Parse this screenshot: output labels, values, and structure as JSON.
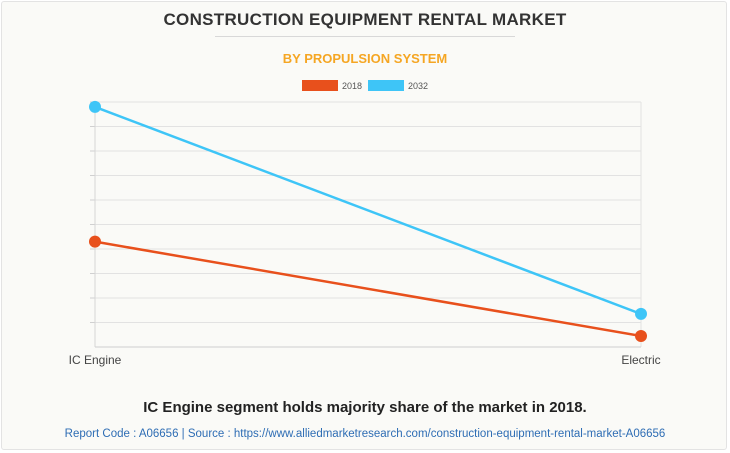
{
  "header": {
    "title": "CONSTRUCTION EQUIPMENT RENTAL MARKET",
    "subtitle": "BY PROPULSION SYSTEM"
  },
  "colors": {
    "series_2018": "#e8501c",
    "series_2032": "#3ec5f7",
    "subtitle": "#f5a623",
    "footer_link": "#2e6db4"
  },
  "chart_data": {
    "type": "line",
    "title": "CONSTRUCTION EQUIPMENT RENTAL MARKET",
    "subtitle": "BY PROPULSION SYSTEM",
    "categories": [
      "IC Engine",
      "Electric"
    ],
    "series": [
      {
        "name": "2018",
        "values": [
          43,
          4.5
        ],
        "color": "#e8501c"
      },
      {
        "name": "2032",
        "values": [
          98,
          13.5
        ],
        "color": "#3ec5f7"
      }
    ],
    "ylim": [
      0,
      100
    ],
    "y_tick_labels_shown": false,
    "grid": true,
    "legend": "top-center",
    "xlabel": "",
    "ylabel": ""
  },
  "caption": "IC Engine segment holds majority share of the market in 2018.",
  "footer": {
    "text": "Report Code : A06656  |  Source : https://www.alliedmarketresearch.com/construction-equipment-rental-market-A06656"
  }
}
